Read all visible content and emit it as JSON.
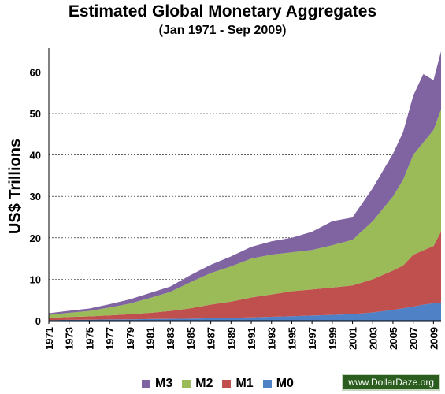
{
  "chart_data": {
    "type": "area",
    "title": "Estimated Global Monetary Aggregates",
    "subtitle": "(Jan 1971 - Sep 2009)",
    "xlabel": "",
    "ylabel": "US$ Trillions",
    "ylim": [
      0,
      65
    ],
    "y_ticks": [
      0,
      10,
      20,
      30,
      40,
      50,
      60
    ],
    "x_ticks": [
      "1971",
      "1973",
      "1975",
      "1977",
      "1979",
      "1981",
      "1983",
      "1985",
      "1987",
      "1989",
      "1991",
      "1993",
      "1995",
      "1997",
      "1999",
      "2001",
      "2003",
      "2005",
      "2007",
      "2009"
    ],
    "stacked": true,
    "grid": "horizontal dashed",
    "legend_position": "bottom",
    "x": [
      1971,
      1973,
      1975,
      1977,
      1979,
      1981,
      1983,
      1985,
      1987,
      1989,
      1991,
      1993,
      1995,
      1997,
      1999,
      2001,
      2003,
      2005,
      2006,
      2007,
      2008,
      2009,
      2009.75
    ],
    "series": [
      {
        "name": "M0",
        "color": "#4f81c7",
        "values": [
          0.15,
          0.2,
          0.25,
          0.3,
          0.35,
          0.4,
          0.45,
          0.5,
          0.6,
          0.7,
          0.8,
          0.95,
          1.1,
          1.25,
          1.4,
          1.6,
          2.0,
          2.6,
          3.0,
          3.4,
          3.9,
          4.2,
          4.4
        ]
      },
      {
        "name": "M1",
        "color": "#c0504d",
        "values": [
          0.55,
          0.7,
          0.8,
          1.0,
          1.2,
          1.5,
          1.9,
          2.5,
          3.3,
          3.9,
          4.8,
          5.4,
          6.0,
          6.3,
          6.6,
          6.9,
          8.0,
          9.5,
          10.3,
          12.5,
          13.1,
          13.8,
          17.1
        ]
      },
      {
        "name": "M2",
        "color": "#9bbb59",
        "values": [
          0.7,
          1.0,
          1.3,
          1.9,
          2.6,
          3.6,
          4.6,
          6.3,
          7.6,
          8.5,
          9.4,
          9.6,
          9.4,
          9.5,
          10.2,
          11.0,
          14.0,
          17.9,
          20.7,
          24.1,
          26.0,
          28.0,
          29.5
        ]
      },
      {
        "name": "M3",
        "color": "#8064a2",
        "values": [
          0.4,
          0.5,
          0.6,
          0.8,
          1.0,
          1.2,
          1.3,
          1.7,
          2.0,
          2.4,
          2.8,
          3.2,
          3.5,
          4.4,
          5.8,
          5.4,
          8.0,
          10.3,
          11.5,
          14.3,
          16.5,
          12.0,
          14.0
        ]
      }
    ]
  },
  "legend": [
    {
      "label": "M3",
      "color": "#8064a2"
    },
    {
      "label": "M2",
      "color": "#9bbb59"
    },
    {
      "label": "M1",
      "color": "#c0504d"
    },
    {
      "label": "M0",
      "color": "#4f81c7"
    }
  ],
  "watermark": "www.DollarDaze.org"
}
